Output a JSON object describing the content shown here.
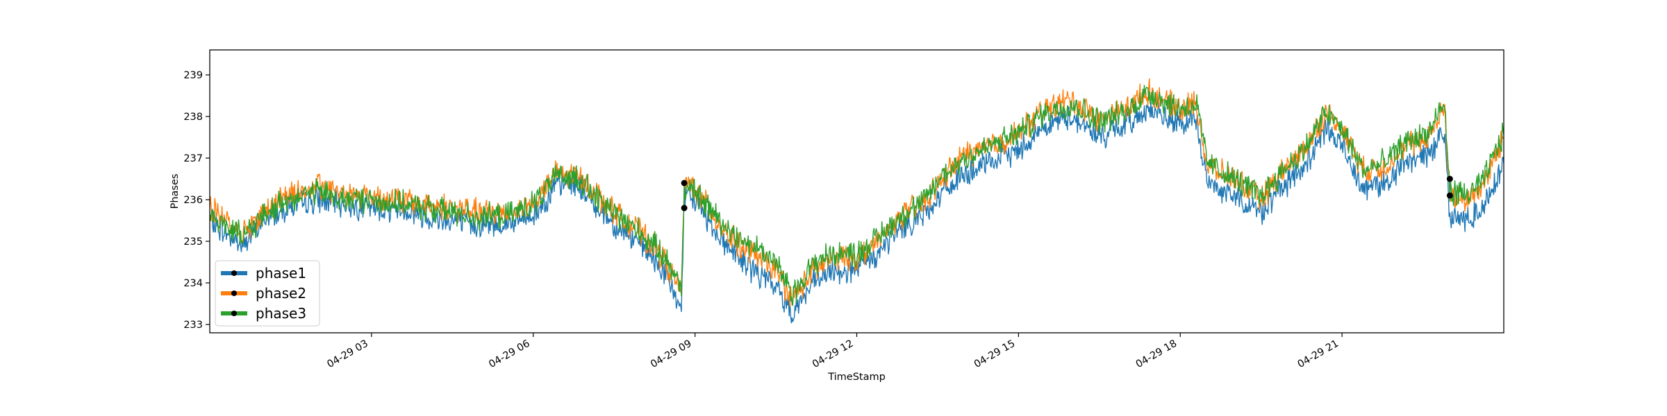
{
  "chart_data": {
    "type": "line",
    "title": "",
    "xlabel": "TimeStamp",
    "ylabel": "Phases",
    "x_range_hours": [
      0.0,
      24.0
    ],
    "ylim": [
      232.8,
      239.6
    ],
    "x_ticks": [
      {
        "value": 3,
        "label": "04-29 03"
      },
      {
        "value": 6,
        "label": "04-29 06"
      },
      {
        "value": 9,
        "label": "04-29 09"
      },
      {
        "value": 12,
        "label": "04-29 12"
      },
      {
        "value": 15,
        "label": "04-29 15"
      },
      {
        "value": 18,
        "label": "04-29 18"
      },
      {
        "value": 21,
        "label": "04-29 21"
      }
    ],
    "y_ticks": [
      233,
      234,
      235,
      236,
      237,
      238,
      239
    ],
    "grid": false,
    "legend_position": "lower-left",
    "series": [
      {
        "name": "phase1",
        "color": "#1f77b4",
        "points": [
          [
            0.0,
            235.5
          ],
          [
            0.3,
            235.2
          ],
          [
            0.6,
            234.9
          ],
          [
            1.0,
            235.5
          ],
          [
            1.4,
            235.8
          ],
          [
            2.0,
            236.0
          ],
          [
            2.5,
            235.9
          ],
          [
            3.0,
            235.8
          ],
          [
            3.5,
            235.8
          ],
          [
            4.0,
            235.6
          ],
          [
            4.5,
            235.5
          ],
          [
            5.0,
            235.4
          ],
          [
            5.5,
            235.4
          ],
          [
            6.0,
            235.6
          ],
          [
            6.4,
            236.3
          ],
          [
            6.8,
            236.4
          ],
          [
            7.2,
            235.8
          ],
          [
            7.6,
            235.3
          ],
          [
            8.0,
            234.9
          ],
          [
            8.4,
            234.3
          ],
          [
            8.75,
            233.4
          ],
          [
            8.8,
            236.0
          ],
          [
            9.0,
            236.0
          ],
          [
            9.4,
            235.2
          ],
          [
            9.8,
            234.6
          ],
          [
            10.2,
            234.2
          ],
          [
            10.5,
            233.9
          ],
          [
            10.8,
            233.3
          ],
          [
            11.2,
            234.0
          ],
          [
            11.6,
            234.3
          ],
          [
            12.0,
            234.3
          ],
          [
            12.4,
            234.7
          ],
          [
            12.8,
            235.3
          ],
          [
            13.2,
            235.6
          ],
          [
            13.6,
            236.2
          ],
          [
            14.0,
            236.6
          ],
          [
            14.5,
            236.9
          ],
          [
            15.0,
            237.2
          ],
          [
            15.5,
            237.8
          ],
          [
            16.0,
            238.0
          ],
          [
            16.5,
            237.5
          ],
          [
            17.0,
            237.8
          ],
          [
            17.4,
            238.2
          ],
          [
            17.8,
            237.9
          ],
          [
            18.0,
            237.8
          ],
          [
            18.3,
            237.9
          ],
          [
            18.5,
            236.4
          ],
          [
            19.0,
            236.1
          ],
          [
            19.5,
            235.7
          ],
          [
            19.9,
            236.3
          ],
          [
            20.3,
            236.8
          ],
          [
            20.7,
            237.7
          ],
          [
            21.0,
            237.3
          ],
          [
            21.4,
            236.3
          ],
          [
            21.8,
            236.4
          ],
          [
            22.2,
            236.9
          ],
          [
            22.6,
            237.1
          ],
          [
            22.9,
            237.7
          ],
          [
            23.0,
            235.6
          ],
          [
            23.3,
            235.5
          ],
          [
            23.6,
            235.8
          ],
          [
            24.0,
            236.9
          ]
        ]
      },
      {
        "name": "phase2",
        "color": "#ff7f0e",
        "points": [
          [
            0.0,
            235.8
          ],
          [
            0.3,
            235.5
          ],
          [
            0.6,
            235.2
          ],
          [
            1.0,
            235.7
          ],
          [
            1.4,
            236.1
          ],
          [
            2.0,
            236.3
          ],
          [
            2.5,
            236.2
          ],
          [
            3.0,
            236.1
          ],
          [
            3.5,
            236.0
          ],
          [
            4.0,
            235.9
          ],
          [
            4.5,
            235.8
          ],
          [
            5.0,
            235.7
          ],
          [
            5.5,
            235.7
          ],
          [
            6.0,
            235.9
          ],
          [
            6.4,
            236.6
          ],
          [
            6.8,
            236.6
          ],
          [
            7.2,
            236.1
          ],
          [
            7.6,
            235.6
          ],
          [
            8.0,
            235.2
          ],
          [
            8.4,
            234.6
          ],
          [
            8.75,
            233.8
          ],
          [
            8.8,
            236.4
          ],
          [
            9.0,
            236.3
          ],
          [
            9.4,
            235.5
          ],
          [
            9.8,
            234.9
          ],
          [
            10.2,
            234.6
          ],
          [
            10.5,
            234.3
          ],
          [
            10.8,
            233.6
          ],
          [
            11.2,
            234.3
          ],
          [
            11.6,
            234.6
          ],
          [
            12.0,
            234.6
          ],
          [
            12.4,
            235.0
          ],
          [
            12.8,
            235.6
          ],
          [
            13.2,
            235.9
          ],
          [
            13.6,
            236.5
          ],
          [
            14.0,
            237.1
          ],
          [
            14.5,
            237.3
          ],
          [
            15.0,
            237.6
          ],
          [
            15.5,
            238.2
          ],
          [
            16.0,
            238.4
          ],
          [
            16.5,
            237.9
          ],
          [
            17.0,
            238.2
          ],
          [
            17.4,
            238.6
          ],
          [
            17.8,
            238.3
          ],
          [
            18.0,
            238.2
          ],
          [
            18.3,
            238.3
          ],
          [
            18.5,
            236.8
          ],
          [
            19.0,
            236.5
          ],
          [
            19.5,
            236.0
          ],
          [
            19.9,
            236.7
          ],
          [
            20.3,
            237.2
          ],
          [
            20.7,
            238.1
          ],
          [
            21.0,
            237.7
          ],
          [
            21.4,
            236.7
          ],
          [
            21.8,
            236.8
          ],
          [
            22.2,
            237.3
          ],
          [
            22.6,
            237.5
          ],
          [
            22.9,
            238.2
          ],
          [
            23.0,
            236.1
          ],
          [
            23.3,
            236.0
          ],
          [
            23.6,
            236.3
          ],
          [
            24.0,
            237.5
          ]
        ]
      },
      {
        "name": "phase3",
        "color": "#2ca02c",
        "points": [
          [
            0.0,
            235.7
          ],
          [
            0.3,
            235.4
          ],
          [
            0.6,
            235.1
          ],
          [
            1.0,
            235.6
          ],
          [
            1.4,
            236.0
          ],
          [
            2.0,
            236.2
          ],
          [
            2.5,
            236.0
          ],
          [
            3.0,
            236.0
          ],
          [
            3.5,
            235.9
          ],
          [
            4.0,
            235.8
          ],
          [
            4.5,
            235.7
          ],
          [
            5.0,
            235.6
          ],
          [
            5.5,
            235.6
          ],
          [
            6.0,
            235.9
          ],
          [
            6.4,
            236.5
          ],
          [
            6.8,
            236.6
          ],
          [
            7.2,
            236.0
          ],
          [
            7.6,
            235.6
          ],
          [
            8.0,
            235.2
          ],
          [
            8.4,
            234.7
          ],
          [
            8.75,
            233.9
          ],
          [
            8.8,
            236.3
          ],
          [
            9.0,
            236.2
          ],
          [
            9.4,
            235.6
          ],
          [
            9.8,
            235.1
          ],
          [
            10.2,
            234.8
          ],
          [
            10.5,
            234.5
          ],
          [
            10.8,
            233.7
          ],
          [
            11.2,
            234.5
          ],
          [
            11.6,
            234.7
          ],
          [
            12.0,
            234.7
          ],
          [
            12.4,
            235.1
          ],
          [
            12.8,
            235.6
          ],
          [
            13.2,
            235.9
          ],
          [
            13.6,
            236.6
          ],
          [
            14.0,
            237.0
          ],
          [
            14.5,
            237.3
          ],
          [
            15.0,
            237.6
          ],
          [
            15.5,
            238.1
          ],
          [
            16.0,
            238.3
          ],
          [
            16.5,
            237.9
          ],
          [
            17.0,
            238.1
          ],
          [
            17.4,
            238.6
          ],
          [
            17.8,
            238.3
          ],
          [
            18.0,
            238.2
          ],
          [
            18.3,
            238.3
          ],
          [
            18.5,
            236.9
          ],
          [
            19.0,
            236.5
          ],
          [
            19.5,
            236.1
          ],
          [
            19.9,
            236.7
          ],
          [
            20.3,
            237.2
          ],
          [
            20.7,
            238.1
          ],
          [
            21.0,
            237.7
          ],
          [
            21.4,
            236.7
          ],
          [
            21.8,
            236.9
          ],
          [
            22.2,
            237.4
          ],
          [
            22.6,
            237.6
          ],
          [
            22.9,
            238.3
          ],
          [
            23.0,
            236.2
          ],
          [
            23.3,
            236.1
          ],
          [
            23.6,
            236.4
          ],
          [
            24.0,
            237.6
          ]
        ]
      }
    ],
    "marked_points": [
      [
        8.8,
        236.4
      ],
      [
        8.8,
        235.8
      ],
      [
        23.0,
        236.5
      ],
      [
        23.0,
        236.1
      ]
    ]
  }
}
